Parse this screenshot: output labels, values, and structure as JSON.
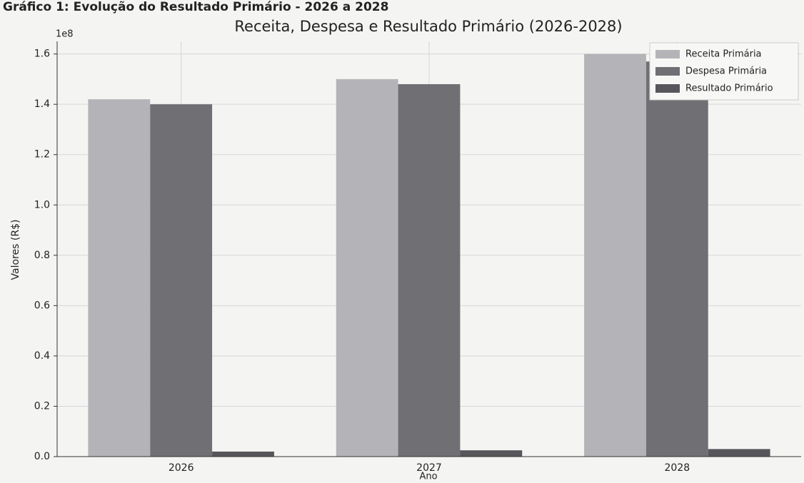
{
  "chart_data": {
    "type": "bar",
    "caption": "Gráfico 1: Evolução do Resultado Primário - 2026 a 2028",
    "title": "Receita, Despesa e Resultado Primário (2026-2028)",
    "x_label": "Ano",
    "y_label": "Valores (R$)",
    "y_offset_label": "1e8",
    "categories": [
      "2026",
      "2027",
      "2028"
    ],
    "series": [
      {
        "name": "Receita Primária",
        "color": "#b4b4b8",
        "values": [
          142000000,
          150000000,
          160000000
        ]
      },
      {
        "name": "Despesa Primária",
        "color": "#6f6f74",
        "values": [
          140000000,
          148000000,
          157000000
        ]
      },
      {
        "name": "Resultado Primário",
        "color": "#56565b",
        "values": [
          2000000,
          2500000,
          3000000
        ]
      }
    ],
    "ylim": [
      0,
      165000000
    ],
    "yticks": [
      {
        "value": 0,
        "label": "0.0"
      },
      {
        "value": 20000000,
        "label": "0.2"
      },
      {
        "value": 40000000,
        "label": "0.4"
      },
      {
        "value": 60000000,
        "label": "0.6"
      },
      {
        "value": 80000000,
        "label": "0.8"
      },
      {
        "value": 100000000,
        "label": "1.0"
      },
      {
        "value": 120000000,
        "label": "1.2"
      },
      {
        "value": 140000000,
        "label": "1.4"
      },
      {
        "value": 160000000,
        "label": "1.6"
      }
    ],
    "grid": true,
    "legend": "upper right"
  }
}
